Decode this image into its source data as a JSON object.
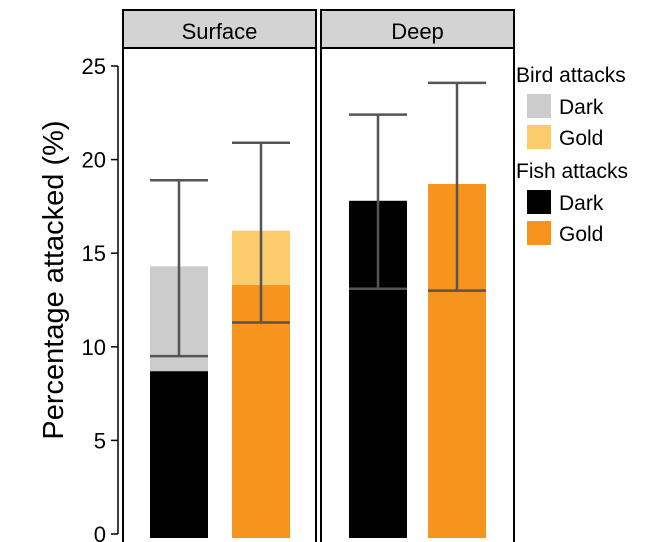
{
  "chart_data": {
    "type": "bar",
    "stacked": true,
    "ylabel": "Percentage attacked (%)",
    "ylim": [
      0,
      27
    ],
    "yticks": [
      0,
      5,
      10,
      15,
      20,
      25
    ],
    "panels": [
      {
        "title": "Surface",
        "bars": [
          {
            "category": "Dark",
            "fish": 8.7,
            "bird": 5.6,
            "total": 14.3,
            "ci_low": 9.5,
            "ci_high": 18.9
          },
          {
            "category": "Gold",
            "fish": 13.3,
            "bird": 2.9,
            "total": 16.2,
            "ci_low": 11.3,
            "ci_high": 20.9
          }
        ]
      },
      {
        "title": "Deep",
        "bars": [
          {
            "category": "Dark",
            "fish": 17.8,
            "bird": 0,
            "total": 17.8,
            "ci_low": 13.1,
            "ci_high": 22.4
          },
          {
            "category": "Gold",
            "fish": 18.7,
            "bird": 0,
            "total": 18.7,
            "ci_low": 13.0,
            "ci_high": 24.1
          }
        ]
      }
    ],
    "legend": {
      "placement": "right",
      "groups": [
        {
          "title": "Bird attacks",
          "items": [
            {
              "label": "Dark",
              "color": "#cccccc"
            },
            {
              "label": "Gold",
              "color": "#fccb6c"
            }
          ]
        },
        {
          "title": "Fish attacks",
          "items": [
            {
              "label": "Dark",
              "color": "#000000"
            },
            {
              "label": "Gold",
              "color": "#f7941d"
            }
          ]
        }
      ]
    },
    "colors": {
      "bird_dark": "#cccccc",
      "bird_gold": "#fccb6c",
      "fish_dark": "#000000",
      "fish_gold": "#f7941d",
      "error_bar": "#555555",
      "strip_fill": "#d3d3d3"
    }
  }
}
